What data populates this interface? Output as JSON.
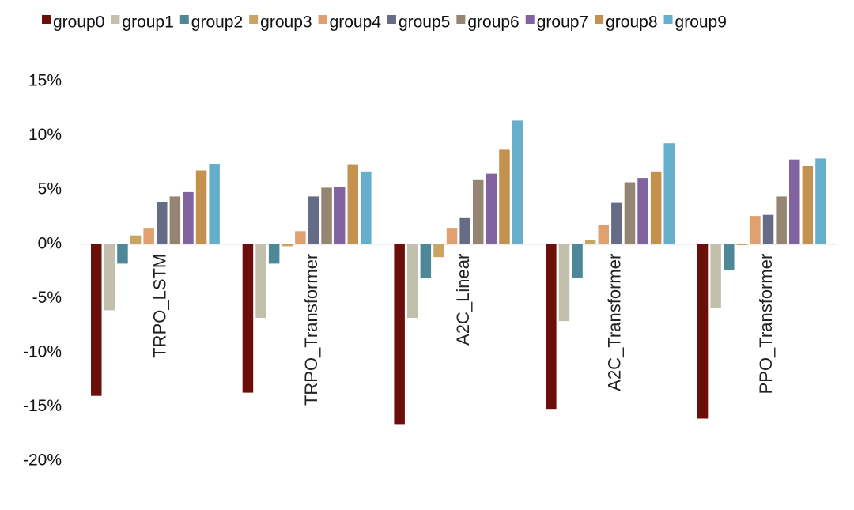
{
  "chart_data": {
    "type": "bar",
    "categories": [
      "TRPO_LSTM",
      "TRPO_Transformer",
      "A2C_Linear",
      "A2C_Transformer",
      "PPO_Transformer"
    ],
    "series": [
      {
        "name": "group0",
        "color": "#6B0F0A",
        "values": [
          -14.0,
          -13.7,
          -16.6,
          -15.2,
          -16.1
        ]
      },
      {
        "name": "group1",
        "color": "#C2C0AC",
        "values": [
          -6.1,
          -6.8,
          -6.8,
          -7.1,
          -5.9
        ]
      },
      {
        "name": "group2",
        "color": "#4E8798",
        "values": [
          -1.8,
          -1.8,
          -3.1,
          -3.1,
          -2.4
        ]
      },
      {
        "name": "group3",
        "color": "#C9A463",
        "values": [
          0.8,
          -0.2,
          -1.2,
          0.4,
          -0.1
        ]
      },
      {
        "name": "group4",
        "color": "#E0A070",
        "values": [
          1.5,
          1.2,
          1.5,
          1.8,
          2.6
        ]
      },
      {
        "name": "group5",
        "color": "#656C86",
        "values": [
          3.9,
          4.4,
          2.4,
          3.8,
          2.7
        ]
      },
      {
        "name": "group6",
        "color": "#968572",
        "values": [
          4.4,
          5.2,
          5.9,
          5.7,
          4.4
        ]
      },
      {
        "name": "group7",
        "color": "#80639F",
        "values": [
          4.8,
          5.3,
          6.5,
          6.1,
          7.8
        ]
      },
      {
        "name": "group8",
        "color": "#C4914E",
        "values": [
          6.8,
          7.3,
          8.7,
          6.7,
          7.2
        ]
      },
      {
        "name": "group9",
        "color": "#65AECC",
        "values": [
          7.4,
          6.7,
          11.4,
          9.3,
          7.9
        ]
      }
    ],
    "ylim": [
      -20,
      15
    ],
    "yticks": [
      15,
      10,
      5,
      0,
      -5,
      -10,
      -15,
      -20
    ],
    "ytick_labels": [
      "15%",
      "10%",
      "5%",
      "0%",
      "-5%",
      "-10%",
      "-15%",
      "-20%"
    ],
    "legend_position": "top",
    "grid": false,
    "zero_line_color": "#d9d9d9",
    "category_label_orientation": "vertical"
  }
}
